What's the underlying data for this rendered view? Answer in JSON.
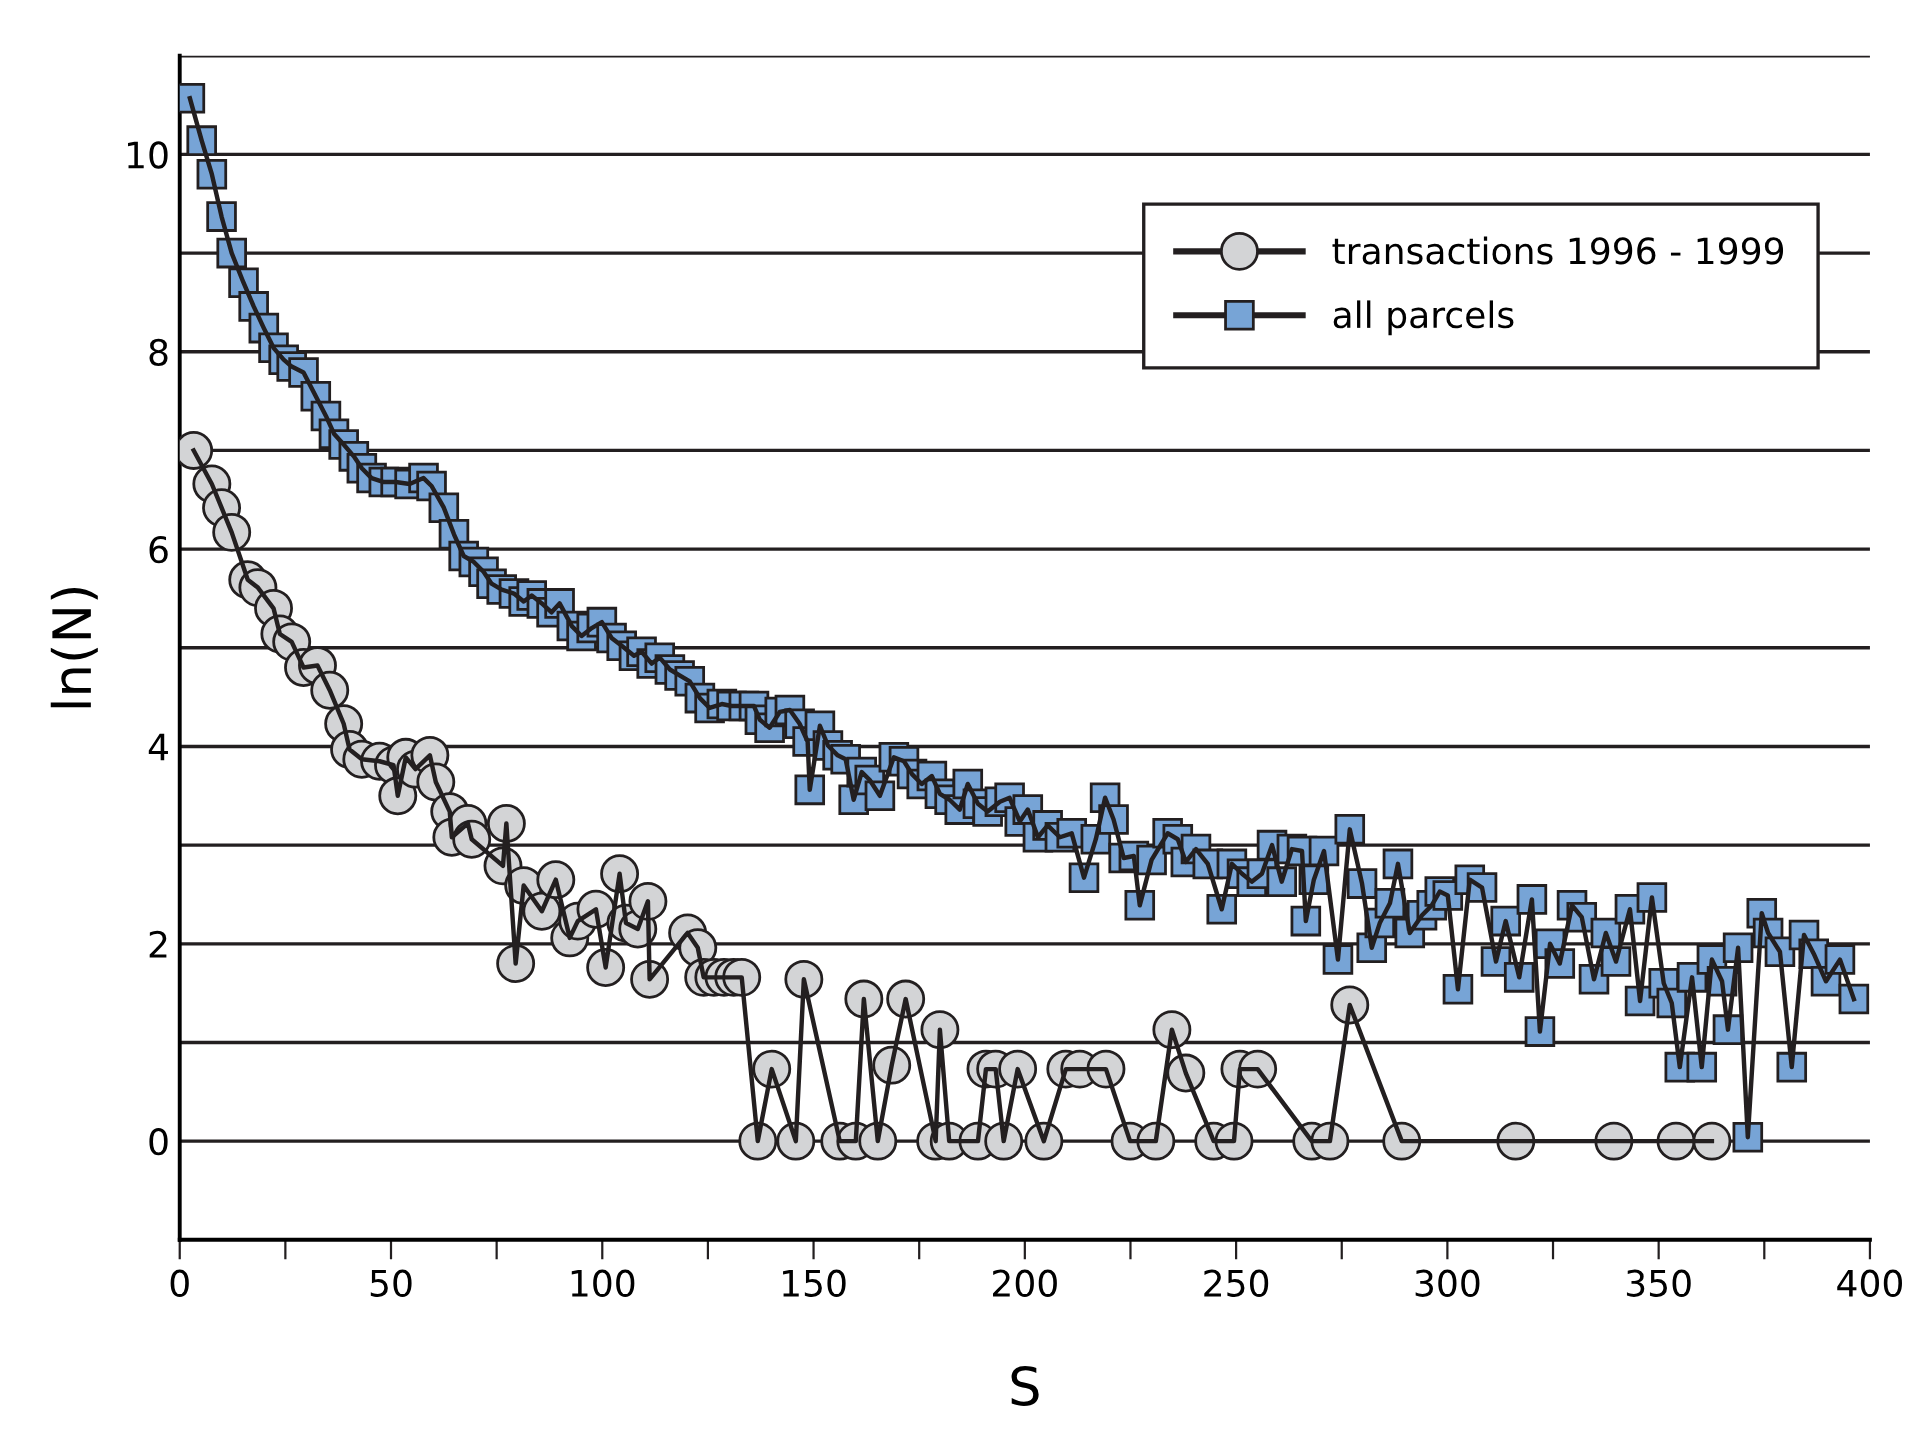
{
  "chart_data": {
    "type": "line",
    "xlabel": "S",
    "ylabel": "ln(N)",
    "xlim": [
      0,
      400
    ],
    "ylim": [
      -1,
      11
    ],
    "xticks": [
      0,
      {
        "value": 25,
        "label": null
      },
      50,
      {
        "value": 75,
        "label": null
      },
      100,
      {
        "value": 125,
        "label": null
      },
      150,
      {
        "value": 175,
        "label": null
      },
      200,
      {
        "value": 225,
        "label": null
      },
      250,
      {
        "value": 275,
        "label": null
      },
      300,
      {
        "value": 325,
        "label": null
      },
      350,
      {
        "value": 375,
        "label": null
      },
      400
    ],
    "yticks": [
      {
        "value": -1,
        "label": null
      },
      0,
      {
        "value": 1,
        "label": null
      },
      2,
      {
        "value": 3,
        "label": null
      },
      4,
      {
        "value": 5,
        "label": null
      },
      6,
      {
        "value": 7,
        "label": null
      },
      8,
      {
        "value": 9,
        "label": null
      },
      10,
      {
        "value": 11,
        "label": null
      }
    ],
    "grid": "y",
    "legend": "top right",
    "line_style": "solid",
    "series": [
      {
        "name": "transactions 1996 - 1999",
        "color": "#d3d4d6",
        "marker": "circle",
        "x": [
          3.3,
          7.6,
          9.9,
          12.3,
          16.1,
          18.5,
          22.2,
          23.7,
          26.5,
          29.3,
          32.6,
          35.5,
          38.8,
          40.2,
          43.1,
          47.3,
          50.6,
          51.6,
          53.5,
          55.8,
          59.2,
          60.6,
          63.9,
          64.4,
          68.2,
          69.1,
          76.5,
          77.3,
          79.5,
          81.4,
          85.7,
          89.0,
          92.3,
          94.2,
          98.5,
          100.8,
          104.1,
          105.6,
          108.4,
          110.8,
          111.2,
          120.2,
          122.6,
          124,
          126.4,
          128.8,
          131.1,
          133,
          136.8,
          140.1,
          145.8,
          147.7,
          156.2,
          160,
          161.9,
          165.2,
          168.5,
          171.8,
          178.9,
          179.9,
          182.1,
          188.9,
          190.8,
          193.1,
          195,
          198.3,
          204.5,
          209.7,
          213,
          219.2,
          224.9,
          231,
          234.8,
          238.1,
          244.7,
          249.5,
          250.9,
          255.1,
          267.9,
          272.2,
          276.9,
          289.2,
          316.2,
          339.4,
          354.1,
          362.6
        ],
        "values": [
          7.0,
          6.66,
          6.42,
          6.17,
          5.69,
          5.61,
          5.4,
          5.14,
          5.06,
          4.8,
          4.82,
          4.57,
          4.23,
          3.97,
          3.87,
          3.85,
          3.81,
          3.5,
          3.89,
          3.77,
          3.91,
          3.64,
          3.34,
          3.08,
          3.22,
          3.06,
          2.79,
          3.22,
          1.8,
          2.59,
          2.33,
          2.65,
          2.06,
          2.23,
          2.35,
          1.76,
          2.71,
          2.21,
          2.15,
          2.43,
          1.64,
          2.11,
          1.96,
          1.66,
          1.66,
          1.66,
          1.66,
          1.66,
          0,
          0.73,
          0,
          1.64,
          0,
          0,
          1.44,
          0,
          0.77,
          1.44,
          0,
          1.13,
          0,
          0,
          0.73,
          0.73,
          0,
          0.73,
          0,
          0.73,
          0.73,
          0.73,
          0,
          0,
          1.13,
          0.69,
          0,
          0,
          0.73,
          0.73,
          0,
          0,
          1.38,
          0,
          0,
          0,
          0,
          0
        ]
      },
      {
        "name": "all parcels",
        "color": "#77a4d6",
        "marker": "square",
        "x": [
          2.4,
          5.2,
          7.6,
          9.9,
          12.3,
          15.1,
          17.5,
          19.9,
          22.2,
          24.6,
          26.5,
          29.3,
          32.2,
          34.6,
          36.5,
          38.8,
          41.2,
          43.1,
          45.4,
          48.3,
          51.1,
          54.4,
          57.7,
          59.6,
          62.5,
          64.9,
          67.2,
          69.6,
          71.9,
          73.8,
          76.2,
          79.1,
          81.4,
          83.3,
          85.7,
          88.0,
          89.9,
          92.8,
          95.1,
          97.5,
          99.9,
          102.2,
          104.6,
          107.5,
          109.3,
          111.7,
          113.6,
          116,
          118.3,
          120.7,
          123.1,
          125.4,
          128.3,
          130.6,
          133.5,
          135.9,
          137.3,
          139.6,
          142,
          144.4,
          146.7,
          148.6,
          149.1,
          151.5,
          153.4,
          155.7,
          157.6,
          159.5,
          161.4,
          163.3,
          165.7,
          169,
          171.4,
          173.3,
          175.6,
          178,
          179.9,
          182.2,
          184.6,
          186.5,
          188.9,
          191.2,
          194.1,
          196.4,
          198.8,
          200.7,
          203.1,
          205.4,
          208.3,
          211.1,
          214,
          216.8,
          219,
          221,
          223.4,
          225.8,
          227.2,
          230,
          233.8,
          236.2,
          238.1,
          240.5,
          243.3,
          246.6,
          249,
          251.4,
          253.7,
          256.1,
          258.5,
          260.8,
          263.2,
          265.6,
          266.5,
          268.4,
          270.8,
          274.1,
          276.9,
          279.8,
          282.1,
          284,
          286.4,
          288.3,
          291.1,
          294,
          296.3,
          298.2,
          300.1,
          302.5,
          305.3,
          308.2,
          311.5,
          313.8,
          317,
          320,
          321.9,
          324.3,
          326.6,
          329.5,
          331.8,
          334.7,
          337.5,
          339.9,
          343.2,
          345.6,
          348.4,
          351.2,
          353.1,
          355,
          357.9,
          360.2,
          362.6,
          365,
          366.4,
          368.8,
          371.1,
          374.4,
          375.9,
          378.7,
          381.5,
          384.4,
          386.7,
          389.6,
          392.9,
          396.2
        ],
        "values": [
          10.57,
          10.14,
          9.8,
          9.37,
          9.0,
          8.7,
          8.46,
          8.24,
          8.04,
          7.92,
          7.85,
          7.79,
          7.55,
          7.35,
          7.17,
          7.06,
          6.94,
          6.82,
          6.72,
          6.68,
          6.68,
          6.66,
          6.72,
          6.64,
          6.42,
          6.15,
          5.93,
          5.87,
          5.77,
          5.65,
          5.59,
          5.55,
          5.47,
          5.53,
          5.45,
          5.36,
          5.45,
          5.22,
          5.12,
          5.2,
          5.26,
          5.1,
          5.02,
          4.92,
          4.96,
          4.84,
          4.9,
          4.78,
          4.72,
          4.66,
          4.49,
          4.39,
          4.43,
          4.41,
          4.41,
          4.41,
          4.27,
          4.19,
          4.35,
          4.37,
          4.23,
          4.05,
          3.56,
          4.21,
          4.01,
          3.91,
          3.87,
          3.46,
          3.74,
          3.66,
          3.5,
          3.89,
          3.85,
          3.72,
          3.62,
          3.7,
          3.52,
          3.46,
          3.36,
          3.62,
          3.42,
          3.34,
          3.44,
          3.48,
          3.24,
          3.36,
          3.08,
          3.2,
          3.08,
          3.12,
          2.67,
          3.06,
          3.48,
          3.26,
          2.87,
          2.89,
          2.39,
          2.85,
          3.12,
          3.06,
          2.83,
          2.96,
          2.81,
          2.35,
          2.81,
          2.71,
          2.63,
          2.71,
          3.0,
          2.63,
          2.96,
          2.94,
          2.23,
          2.65,
          2.94,
          1.84,
          3.16,
          2.61,
          1.96,
          2.21,
          2.41,
          2.81,
          2.11,
          2.29,
          2.39,
          2.53,
          2.49,
          1.54,
          2.65,
          2.57,
          1.82,
          2.23,
          1.66,
          2.45,
          1.11,
          2.0,
          1.8,
          2.39,
          2.27,
          1.64,
          2.11,
          1.82,
          2.35,
          1.42,
          2.47,
          1.6,
          1.4,
          0.75,
          1.66,
          0.75,
          1.84,
          1.62,
          1.13,
          1.96,
          0.04,
          2.31,
          2.11,
          1.92,
          0.75,
          2.09,
          1.9,
          1.62,
          1.84,
          1.44
        ]
      }
    ]
  }
}
